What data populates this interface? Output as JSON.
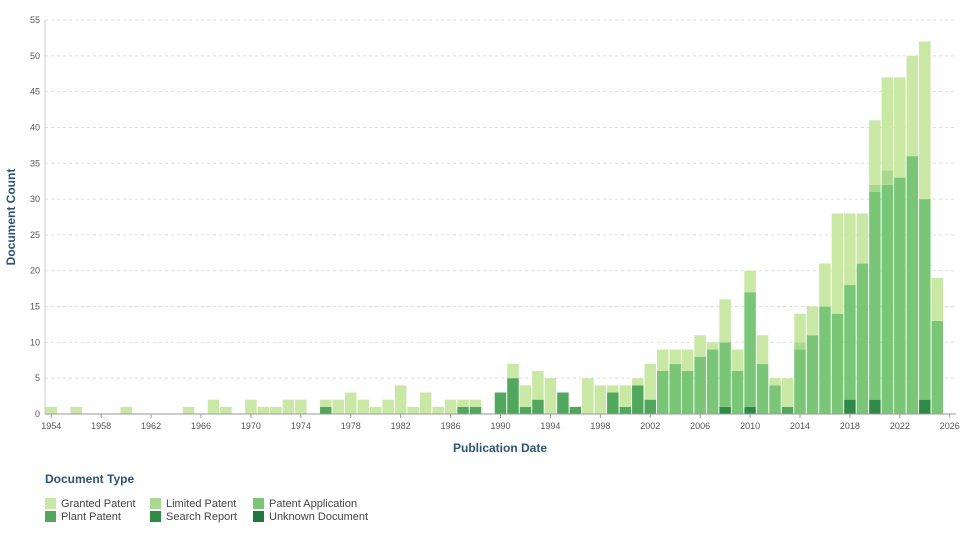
{
  "chart_data": {
    "type": "bar",
    "stacked": true,
    "title": "",
    "xlabel": "Publication Date",
    "ylabel": "Document Count",
    "ylim": [
      0,
      55
    ],
    "y_ticks": [
      0,
      5,
      10,
      15,
      20,
      25,
      30,
      35,
      40,
      45,
      50,
      55
    ],
    "x_ticks": [
      "1954",
      "1958",
      "1962",
      "1966",
      "1970",
      "1974",
      "1978",
      "1982",
      "1986",
      "1990",
      "1994",
      "1998",
      "2002",
      "2006",
      "2010",
      "2014",
      "2018",
      "2022",
      "2026"
    ],
    "grid": "horizontal-dashed",
    "legend_title": "Document Type",
    "legend_position": "bottom-left",
    "x": [
      1954,
      1955,
      1956,
      1957,
      1958,
      1959,
      1960,
      1961,
      1962,
      1963,
      1964,
      1965,
      1966,
      1967,
      1968,
      1969,
      1970,
      1971,
      1972,
      1973,
      1974,
      1975,
      1976,
      1977,
      1978,
      1979,
      1980,
      1981,
      1982,
      1983,
      1984,
      1985,
      1986,
      1987,
      1988,
      1989,
      1990,
      1991,
      1992,
      1993,
      1994,
      1995,
      1996,
      1997,
      1998,
      1999,
      2000,
      2001,
      2002,
      2003,
      2004,
      2005,
      2006,
      2007,
      2008,
      2009,
      2010,
      2011,
      2012,
      2013,
      2014,
      2015,
      2016,
      2017,
      2018,
      2019,
      2020,
      2021,
      2022,
      2023,
      2024,
      2025,
      2026
    ],
    "series": [
      {
        "name": "Unknown Document",
        "color": "#1e7a3c",
        "values": [
          0,
          0,
          0,
          0,
          0,
          0,
          0,
          0,
          0,
          0,
          0,
          0,
          0,
          0,
          0,
          0,
          0,
          0,
          0,
          0,
          0,
          0,
          0,
          0,
          0,
          0,
          0,
          0,
          0,
          0,
          0,
          0,
          0,
          0,
          0,
          0,
          0,
          0,
          0,
          0,
          0,
          0,
          0,
          0,
          0,
          0,
          0,
          0,
          0,
          0,
          0,
          0,
          0,
          0,
          0,
          0,
          0,
          0,
          0,
          0,
          0,
          0,
          0,
          0,
          0,
          0,
          0,
          0,
          0,
          0,
          0,
          0,
          0
        ]
      },
      {
        "name": "Search Report",
        "color": "#2e8b47",
        "values": [
          0,
          0,
          0,
          0,
          0,
          0,
          0,
          0,
          0,
          0,
          0,
          0,
          0,
          0,
          0,
          0,
          0,
          0,
          0,
          0,
          0,
          0,
          0,
          0,
          0,
          0,
          0,
          0,
          0,
          0,
          0,
          0,
          0,
          0,
          0,
          0,
          0,
          0,
          0,
          0,
          0,
          0,
          0,
          0,
          0,
          0,
          0,
          0,
          0,
          0,
          0,
          0,
          0,
          0,
          1,
          0,
          1,
          0,
          0,
          0,
          0,
          0,
          0,
          0,
          2,
          0,
          2,
          0,
          0,
          0,
          2,
          0,
          0
        ]
      },
      {
        "name": "Plant Patent",
        "color": "#4fa85c",
        "values": [
          0,
          0,
          0,
          0,
          0,
          0,
          0,
          0,
          0,
          0,
          0,
          0,
          0,
          0,
          0,
          0,
          0,
          0,
          0,
          0,
          0,
          0,
          1,
          0,
          0,
          0,
          0,
          0,
          0,
          0,
          0,
          0,
          0,
          1,
          1,
          0,
          3,
          5,
          1,
          2,
          0,
          3,
          1,
          0,
          0,
          3,
          1,
          4,
          2,
          0,
          0,
          0,
          0,
          0,
          0,
          0,
          0,
          0,
          0,
          1,
          0,
          0,
          0,
          0,
          0,
          0,
          0,
          0,
          0,
          0,
          0,
          0,
          0
        ]
      },
      {
        "name": "Patent Application",
        "color": "#79c676",
        "values": [
          0,
          0,
          0,
          0,
          0,
          0,
          0,
          0,
          0,
          0,
          0,
          0,
          0,
          0,
          0,
          0,
          0,
          0,
          0,
          0,
          0,
          0,
          0,
          0,
          0,
          0,
          0,
          0,
          0,
          0,
          0,
          0,
          0,
          0,
          0,
          0,
          0,
          0,
          0,
          0,
          0,
          0,
          0,
          0,
          0,
          0,
          0,
          0,
          0,
          6,
          7,
          6,
          8,
          9,
          9,
          6,
          16,
          7,
          4,
          0,
          9,
          11,
          15,
          14,
          16,
          21,
          29,
          32,
          33,
          36,
          28,
          13,
          0
        ]
      },
      {
        "name": "Limited Patent",
        "color": "#a8d98e",
        "values": [
          0,
          0,
          0,
          0,
          0,
          0,
          0,
          0,
          0,
          0,
          0,
          0,
          0,
          0,
          0,
          0,
          0,
          0,
          0,
          0,
          0,
          0,
          0,
          0,
          0,
          0,
          0,
          0,
          0,
          0,
          0,
          0,
          0,
          0,
          0,
          0,
          0,
          0,
          0,
          0,
          0,
          0,
          0,
          0,
          0,
          0,
          0,
          0,
          0,
          0,
          0,
          0,
          0,
          0,
          0,
          0,
          0,
          0,
          0,
          0,
          1,
          0,
          0,
          0,
          0,
          0,
          1,
          2,
          0,
          0,
          0,
          0,
          0
        ]
      },
      {
        "name": "Granted Patent",
        "color": "#c9e8a4",
        "values": [
          1,
          0,
          1,
          0,
          0,
          0,
          1,
          0,
          0,
          0,
          0,
          1,
          0,
          2,
          1,
          0,
          2,
          1,
          1,
          2,
          2,
          0,
          1,
          2,
          3,
          2,
          1,
          2,
          4,
          1,
          3,
          1,
          2,
          1,
          1,
          0,
          0,
          2,
          3,
          4,
          5,
          0,
          0,
          5,
          4,
          1,
          3,
          1,
          5,
          3,
          2,
          3,
          3,
          1,
          6,
          3,
          3,
          4,
          1,
          4,
          4,
          4,
          6,
          14,
          10,
          7,
          9,
          13,
          14,
          14,
          22,
          6,
          0
        ]
      }
    ],
    "legend_order": [
      "Granted Patent",
      "Limited Patent",
      "Patent Application",
      "Plant Patent",
      "Search Report",
      "Unknown Document"
    ]
  }
}
